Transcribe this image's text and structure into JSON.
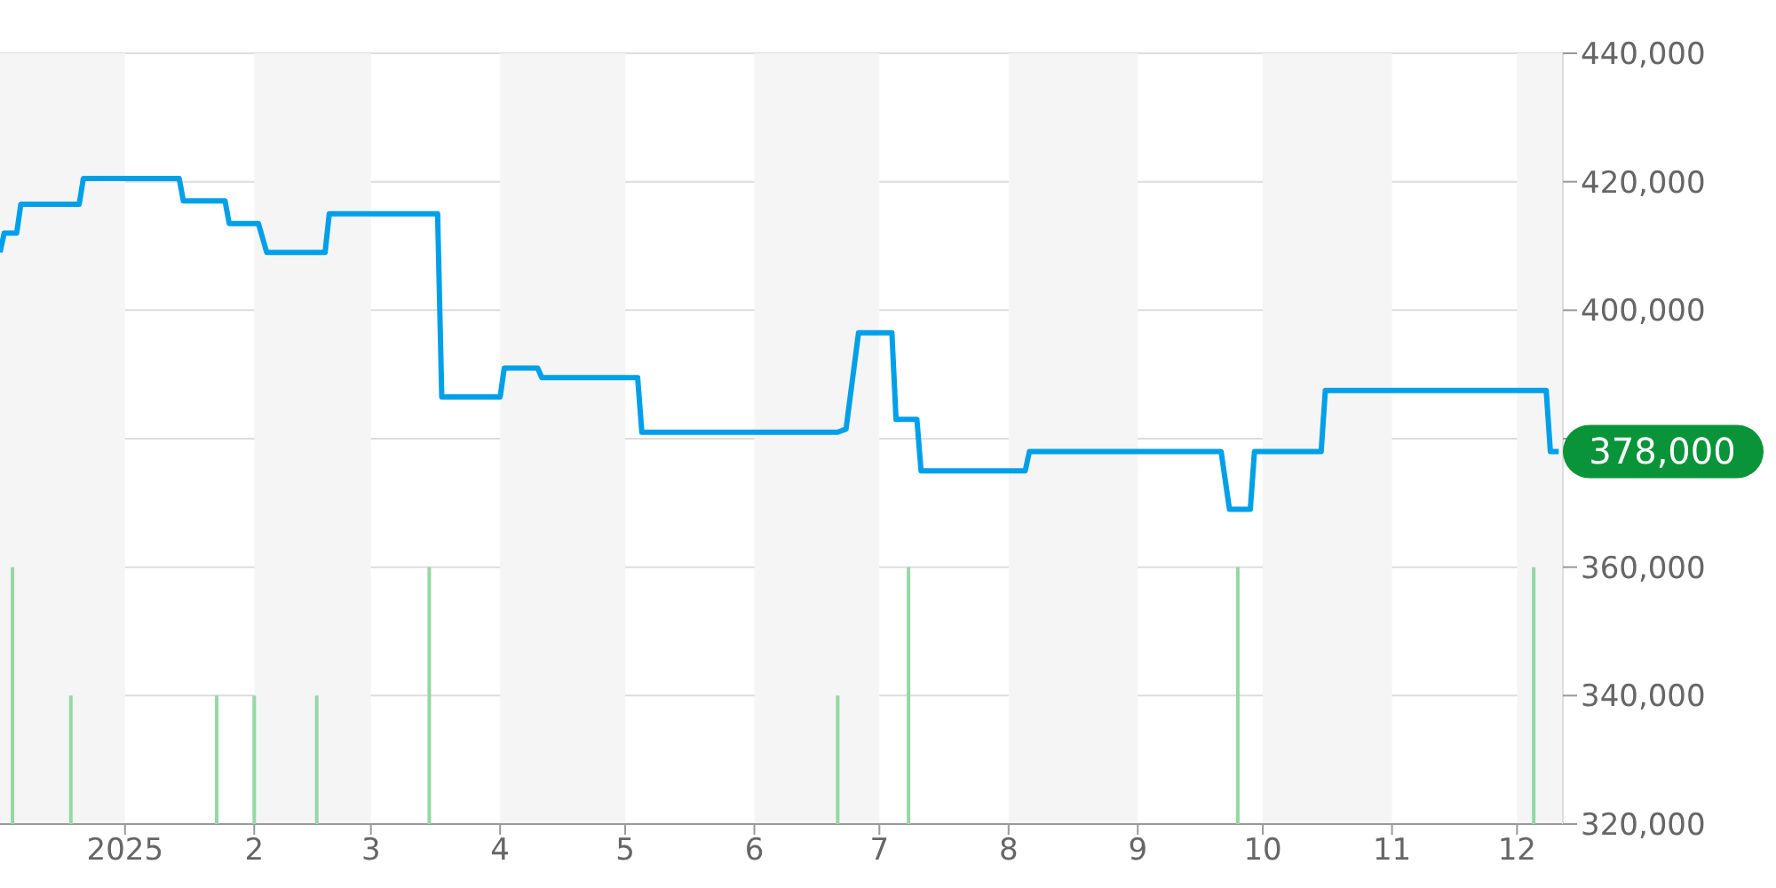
{
  "chart_data": {
    "type": "line",
    "xlim": [
      "2024-12-02",
      "2025-12-12"
    ],
    "xticks": [
      {
        "value": "2025-01-01",
        "label": "2025"
      },
      {
        "value": "2025-02-01",
        "label": "2"
      },
      {
        "value": "2025-03-01",
        "label": "3"
      },
      {
        "value": "2025-04-01",
        "label": "4"
      },
      {
        "value": "2025-05-01",
        "label": "5"
      },
      {
        "value": "2025-06-01",
        "label": "6"
      },
      {
        "value": "2025-07-01",
        "label": "7"
      },
      {
        "value": "2025-08-01",
        "label": "8"
      },
      {
        "value": "2025-09-01",
        "label": "9"
      },
      {
        "value": "2025-10-01",
        "label": "10"
      },
      {
        "value": "2025-11-01",
        "label": "11"
      },
      {
        "value": "2025-12-01",
        "label": "12"
      }
    ],
    "ylim": [
      320000,
      440000
    ],
    "yticks": [
      {
        "value": 320000,
        "label": "320,000"
      },
      {
        "value": 340000,
        "label": "340,000"
      },
      {
        "value": 360000,
        "label": "360,000"
      },
      {
        "value": 380000,
        "label": null
      },
      {
        "value": 400000,
        "label": "400,000"
      },
      {
        "value": 420000,
        "label": "420,000"
      },
      {
        "value": 440000,
        "label": "440,000"
      }
    ],
    "grid": "y",
    "line_style": "solid",
    "marker": "none",
    "series": [
      {
        "color": "#00a0e9",
        "x": [
          "2024-12-02",
          "2024-12-03",
          "2024-12-06",
          "2024-12-07",
          "2024-12-21",
          "2024-12-22",
          "2025-01-14",
          "2025-01-15",
          "2025-01-25",
          "2025-01-26",
          "2025-02-02",
          "2025-02-04",
          "2025-02-18",
          "2025-02-19",
          "2025-03-17",
          "2025-03-18",
          "2025-04-01",
          "2025-04-02",
          "2025-04-10",
          "2025-04-11",
          "2025-05-04",
          "2025-05-05",
          "2025-06-21",
          "2025-06-23",
          "2025-06-26",
          "2025-07-04",
          "2025-07-05",
          "2025-07-10",
          "2025-07-11",
          "2025-08-05",
          "2025-08-06",
          "2025-09-21",
          "2025-09-23",
          "2025-09-28",
          "2025-09-29",
          "2025-10-15",
          "2025-10-16",
          "2025-12-08",
          "2025-12-09",
          "2025-12-11"
        ],
        "values": [
          409000,
          412000,
          412000,
          416500,
          416500,
          420500,
          420500,
          417000,
          417000,
          413500,
          413500,
          409000,
          409000,
          415000,
          415000,
          386500,
          386500,
          391000,
          391000,
          389500,
          389500,
          381000,
          381000,
          381500,
          396500,
          396500,
          383000,
          383000,
          375000,
          375000,
          378000,
          378000,
          369000,
          369000,
          378000,
          378000,
          387500,
          387500,
          378000,
          378000
        ]
      },
      {
        "type": "bar",
        "color": "#94d8a4",
        "x": [
          "2024-12-05",
          "2024-12-19",
          "2025-01-23",
          "2025-02-01",
          "2025-02-16",
          "2025-03-15",
          "2025-06-21",
          "2025-07-08",
          "2025-09-25",
          "2025-12-05"
        ],
        "values": [
          360000,
          340000,
          340000,
          340000,
          340000,
          360000,
          340000,
          360000,
          360000,
          360000
        ]
      }
    ],
    "bands": [
      {
        "axis": "x",
        "from": "2024-12-02",
        "to": "2025-01-01",
        "color": "#f5f5f5"
      },
      {
        "axis": "x",
        "from": "2025-02-01",
        "to": "2025-03-01",
        "color": "#f5f5f5"
      },
      {
        "axis": "x",
        "from": "2025-04-01",
        "to": "2025-05-01",
        "color": "#f5f5f5"
      },
      {
        "axis": "x",
        "from": "2025-06-01",
        "to": "2025-07-01",
        "color": "#f5f5f5"
      },
      {
        "axis": "x",
        "from": "2025-08-01",
        "to": "2025-09-01",
        "color": "#f5f5f5"
      },
      {
        "axis": "x",
        "from": "2025-10-01",
        "to": "2025-11-01",
        "color": "#f5f5f5"
      },
      {
        "axis": "x",
        "from": "2025-12-01",
        "to": "2025-12-12",
        "color": "#f5f5f5"
      }
    ],
    "annotations": [
      {
        "text": "378,000",
        "x": "2025-12-11",
        "y": 378000
      }
    ]
  }
}
